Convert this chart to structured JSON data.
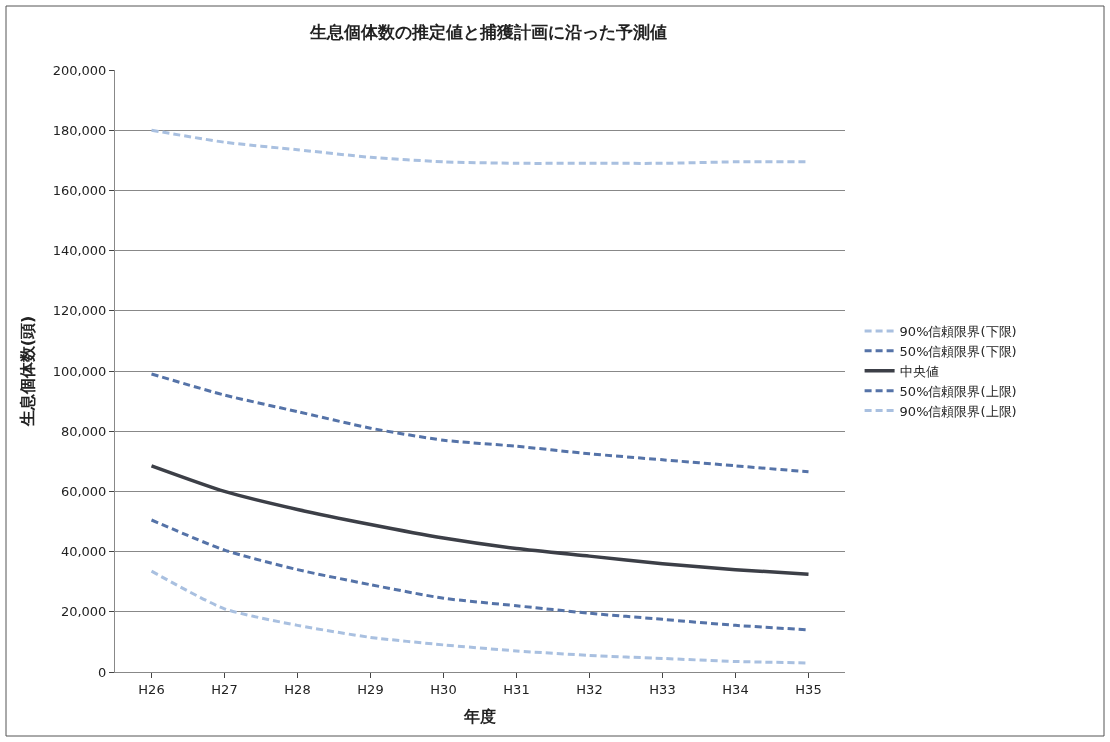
{
  "chart_data": {
    "type": "line",
    "title": "生息個体数の推定値と捕獲計画に沿った予測値",
    "xlabel": "年度",
    "ylabel": "生息個体数(頭)",
    "categories": [
      "H26",
      "H27",
      "H28",
      "H29",
      "H30",
      "H31",
      "H32",
      "H33",
      "H34",
      "H35"
    ],
    "series": [
      {
        "name": "90%信頼限界(下限)",
        "color": "#a9c0e0",
        "line_style": "dashed",
        "values": [
          180000,
          176000,
          173500,
          171000,
          169500,
          169000,
          169000,
          169000,
          169500,
          169500
        ]
      },
      {
        "name": "50%信頼限界(下限)",
        "color": "#5573a8",
        "line_style": "dashed",
        "values": [
          99000,
          92000,
          86500,
          81000,
          77000,
          75000,
          72500,
          70500,
          68500,
          66500
        ]
      },
      {
        "name": "中央値",
        "color": "#3c3f47",
        "line_style": "solid",
        "values": [
          68500,
          60000,
          54000,
          49000,
          44500,
          41000,
          38500,
          36000,
          34000,
          32500
        ]
      },
      {
        "name": "50%信頼限界(上限)",
        "color": "#5573a8",
        "line_style": "dashed",
        "values": [
          50500,
          40500,
          34000,
          29000,
          24500,
          22000,
          19500,
          17500,
          15500,
          14000
        ]
      },
      {
        "name": "90%信頼限界(上限)",
        "color": "#a9c0e0",
        "line_style": "dashed",
        "values": [
          33500,
          21000,
          15500,
          11500,
          9000,
          7000,
          5500,
          4500,
          3500,
          3000
        ]
      }
    ],
    "ylim": [
      0,
      200000
    ],
    "yticks": [
      {
        "value": 0,
        "label": "0"
      },
      {
        "value": 20000,
        "label": "20,000"
      },
      {
        "value": 40000,
        "label": "40,000"
      },
      {
        "value": 60000,
        "label": "60,000"
      },
      {
        "value": 80000,
        "label": "80,000"
      },
      {
        "value": 100000,
        "label": "100,000"
      },
      {
        "value": 120000,
        "label": "120,000"
      },
      {
        "value": 140000,
        "label": "140,000"
      },
      {
        "value": 160000,
        "label": "160,000"
      },
      {
        "value": 180000,
        "label": "180,000"
      },
      {
        "value": 200000,
        "label": "200,000"
      }
    ],
    "grid": "y",
    "legend": "right",
    "marker": "none"
  }
}
